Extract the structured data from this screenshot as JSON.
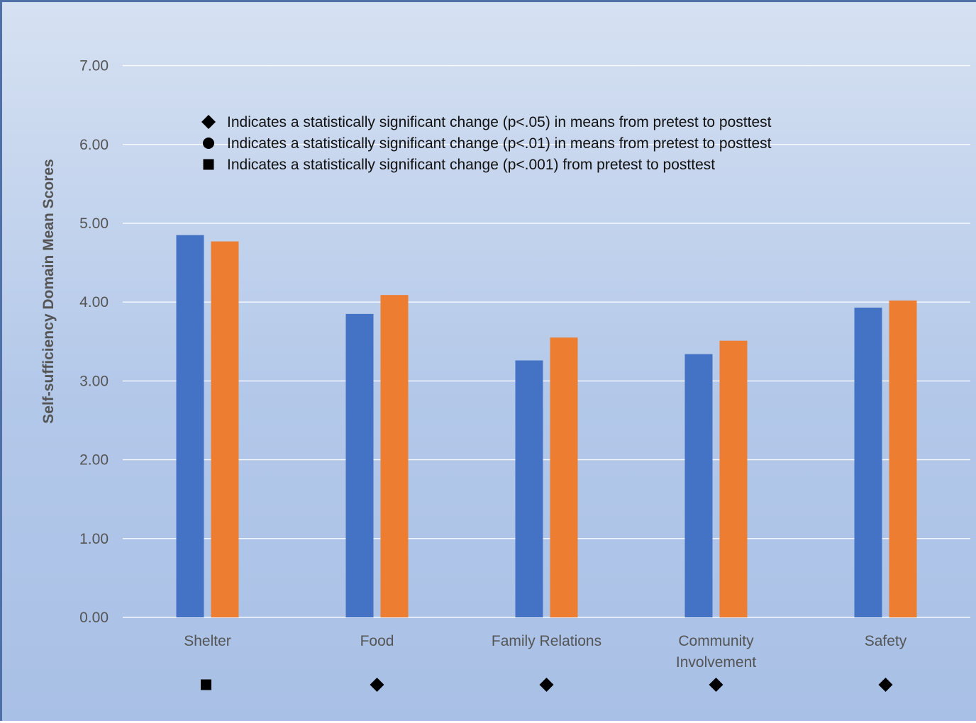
{
  "chart_data": {
    "type": "bar",
    "title": "",
    "xlabel": "",
    "ylabel": "Self-sufficiency Domain Mean Scores",
    "ylim": [
      0,
      7
    ],
    "yticks": [
      "0.00",
      "1.00",
      "2.00",
      "3.00",
      "4.00",
      "5.00",
      "6.00",
      "7.00"
    ],
    "grid": true,
    "categories": [
      "Shelter",
      "Food",
      "Family Relations",
      "Community Involvement",
      "Safety"
    ],
    "category_label_lines": [
      [
        "Shelter"
      ],
      [
        "Food"
      ],
      [
        "Family Relations"
      ],
      [
        "Community",
        "Involvement"
      ],
      [
        "Safety"
      ]
    ],
    "series": [
      {
        "values": [
          4.85,
          3.85,
          3.26,
          3.34,
          3.93
        ]
      },
      {
        "values": [
          4.77,
          4.09,
          3.55,
          3.51,
          4.02
        ]
      }
    ],
    "significance_markers": [
      "square",
      "diamond",
      "diamond",
      "diamond",
      "diamond"
    ],
    "annotations": [
      {
        "symbol": "diamond",
        "text": "Indicates a statistically significant change (p<.05) in means from pretest to posttest"
      },
      {
        "symbol": "circle",
        "text": "Indicates a statistically significant change (p<.01) in means from pretest to posttest"
      },
      {
        "symbol": "square",
        "text": "Indicates a statistically significant change (p<.001) from pretest to posttest"
      }
    ]
  },
  "colors": {
    "series": [
      "#4472c4",
      "#ed7d31"
    ],
    "grid": "#ffffff",
    "marker": "#000000"
  }
}
